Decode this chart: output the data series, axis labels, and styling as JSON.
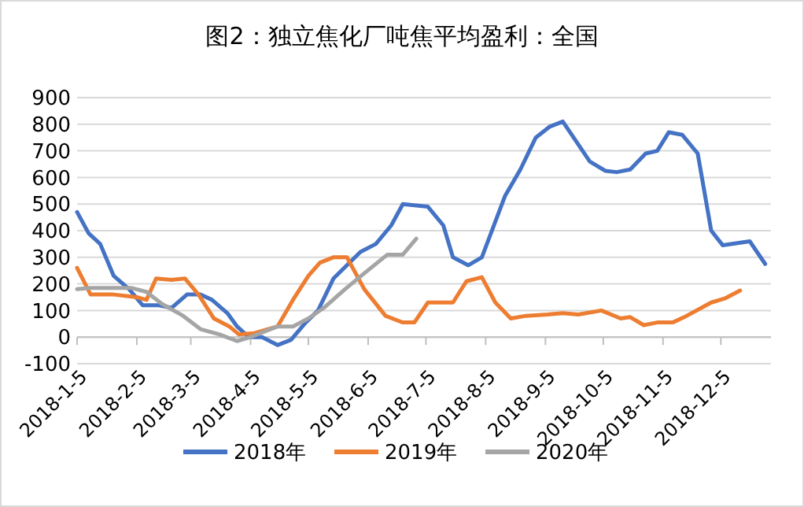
{
  "chart_data": {
    "type": "line",
    "title": "图2：独立焦化厂吨焦平均盈利：全国",
    "xlim": [
      "2018-01-05",
      "2018-12-31"
    ],
    "xticks": [
      {
        "value": "2018-01-05",
        "label": "2018-1-5"
      },
      {
        "value": "2018-02-05",
        "label": "2018-2-5"
      },
      {
        "value": "2018-03-05",
        "label": "2018-3-5"
      },
      {
        "value": "2018-04-05",
        "label": "2018-4-5"
      },
      {
        "value": "2018-05-05",
        "label": "2018-5-5"
      },
      {
        "value": "2018-06-05",
        "label": "2018-6-5"
      },
      {
        "value": "2018-07-05",
        "label": "2018-7-5"
      },
      {
        "value": "2018-08-05",
        "label": "2018-8-5"
      },
      {
        "value": "2018-09-05",
        "label": "2018-9-5"
      },
      {
        "value": "2018-10-05",
        "label": "2018-10-5"
      },
      {
        "value": "2018-11-05",
        "label": "2018-11-5"
      },
      {
        "value": "2018-12-05",
        "label": "2018-12-5"
      }
    ],
    "ylim": [
      -100,
      900
    ],
    "yticks": [
      -100,
      0,
      100,
      200,
      300,
      400,
      500,
      600,
      700,
      800,
      900
    ],
    "grid": "y",
    "legend": "bottom",
    "line_style": "solid",
    "marker": "none",
    "series": [
      {
        "name": "2018年",
        "color": "#4472c4",
        "x": [
          "2018-01-05",
          "2018-01-11",
          "2018-01-17",
          "2018-01-24",
          "2018-02-01",
          "2018-02-08",
          "2018-02-16",
          "2018-02-23",
          "2018-03-03",
          "2018-03-10",
          "2018-03-16",
          "2018-03-24",
          "2018-03-29",
          "2018-04-04",
          "2018-04-11",
          "2018-04-19",
          "2018-04-26",
          "2018-05-03",
          "2018-05-10",
          "2018-05-18",
          "2018-06-01",
          "2018-06-09",
          "2018-06-17",
          "2018-06-23",
          "2018-07-06",
          "2018-07-14",
          "2018-07-19",
          "2018-07-27",
          "2018-08-03",
          "2018-08-15",
          "2018-08-23",
          "2018-08-31",
          "2018-09-07",
          "2018-09-14",
          "2018-09-28",
          "2018-10-06",
          "2018-10-12",
          "2018-10-19",
          "2018-10-27",
          "2018-11-02",
          "2018-11-08",
          "2018-11-15",
          "2018-11-23",
          "2018-11-30",
          "2018-12-06",
          "2018-12-20",
          "2018-12-28"
        ],
        "values": [
          470,
          390,
          350,
          230,
          180,
          120,
          120,
          110,
          160,
          160,
          140,
          90,
          40,
          0,
          0,
          -30,
          -10,
          50,
          100,
          220,
          320,
          350,
          420,
          500,
          490,
          420,
          300,
          270,
          300,
          530,
          630,
          750,
          790,
          810,
          660,
          625,
          620,
          630,
          690,
          700,
          770,
          760,
          690,
          400,
          345,
          360,
          275
        ]
      },
      {
        "name": "2019年",
        "color": "#ed7d31",
        "x": [
          "2018-01-05",
          "2018-01-12",
          "2018-01-24",
          "2018-02-05",
          "2018-02-10",
          "2018-02-15",
          "2018-02-23",
          "2018-03-02",
          "2018-03-09",
          "2018-03-17",
          "2018-03-25",
          "2018-03-30",
          "2018-04-07",
          "2018-04-19",
          "2018-04-27",
          "2018-05-05",
          "2018-05-11",
          "2018-05-18",
          "2018-05-25",
          "2018-06-03",
          "2018-06-14",
          "2018-06-23",
          "2018-06-29",
          "2018-07-06",
          "2018-07-19",
          "2018-07-26",
          "2018-08-03",
          "2018-08-10",
          "2018-08-18",
          "2018-08-26",
          "2018-09-06",
          "2018-09-14",
          "2018-09-22",
          "2018-10-04",
          "2018-10-14",
          "2018-10-19",
          "2018-10-26",
          "2018-11-02",
          "2018-11-10",
          "2018-11-16",
          "2018-11-30",
          "2018-12-07",
          "2018-12-15"
        ],
        "values": [
          260,
          160,
          160,
          150,
          140,
          220,
          215,
          220,
          160,
          70,
          40,
          10,
          15,
          40,
          140,
          230,
          280,
          300,
          300,
          180,
          80,
          55,
          55,
          130,
          130,
          210,
          225,
          130,
          70,
          80,
          85,
          90,
          85,
          100,
          70,
          75,
          45,
          55,
          55,
          75,
          130,
          145,
          175
        ]
      },
      {
        "name": "2020年",
        "color": "#a5a5a5",
        "x": [
          "2018-01-05",
          "2018-01-12",
          "2018-02-02",
          "2018-02-10",
          "2018-02-18",
          "2018-03-01",
          "2018-03-10",
          "2018-03-20",
          "2018-03-29",
          "2018-04-05",
          "2018-04-19",
          "2018-04-27",
          "2018-05-05",
          "2018-05-13",
          "2018-05-24",
          "2018-06-03",
          "2018-06-15",
          "2018-06-23",
          "2018-06-30"
        ],
        "values": [
          180,
          185,
          185,
          170,
          125,
          80,
          30,
          10,
          -15,
          0,
          40,
          40,
          70,
          110,
          180,
          240,
          310,
          310,
          370
        ]
      }
    ]
  }
}
